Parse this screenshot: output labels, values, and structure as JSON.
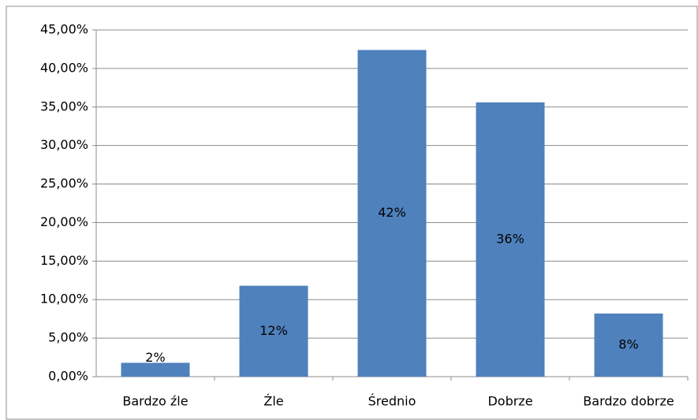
{
  "chart_data": {
    "type": "bar",
    "categories": [
      "Bardzo źle",
      "Źle",
      "Średnio",
      "Dobrze",
      "Bardzo dobrze"
    ],
    "values": [
      1.8,
      11.8,
      42.4,
      35.6,
      8.2
    ],
    "value_labels": [
      "2%",
      "12%",
      "42%",
      "36%",
      "8%"
    ],
    "color": "#4f81bd",
    "ylim": [
      0,
      45
    ],
    "yticks": [
      {
        "value": 0,
        "label": "0,00%"
      },
      {
        "value": 5,
        "label": "5,00%"
      },
      {
        "value": 10,
        "label": "10,00%"
      },
      {
        "value": 15,
        "label": "15,00%"
      },
      {
        "value": 20,
        "label": "20,00%"
      },
      {
        "value": 25,
        "label": "25,00%"
      },
      {
        "value": 30,
        "label": "30,00%"
      },
      {
        "value": 35,
        "label": "35,00%"
      },
      {
        "value": 40,
        "label": "40,00%"
      },
      {
        "value": 45,
        "label": "45,00%"
      }
    ],
    "grid": true
  }
}
